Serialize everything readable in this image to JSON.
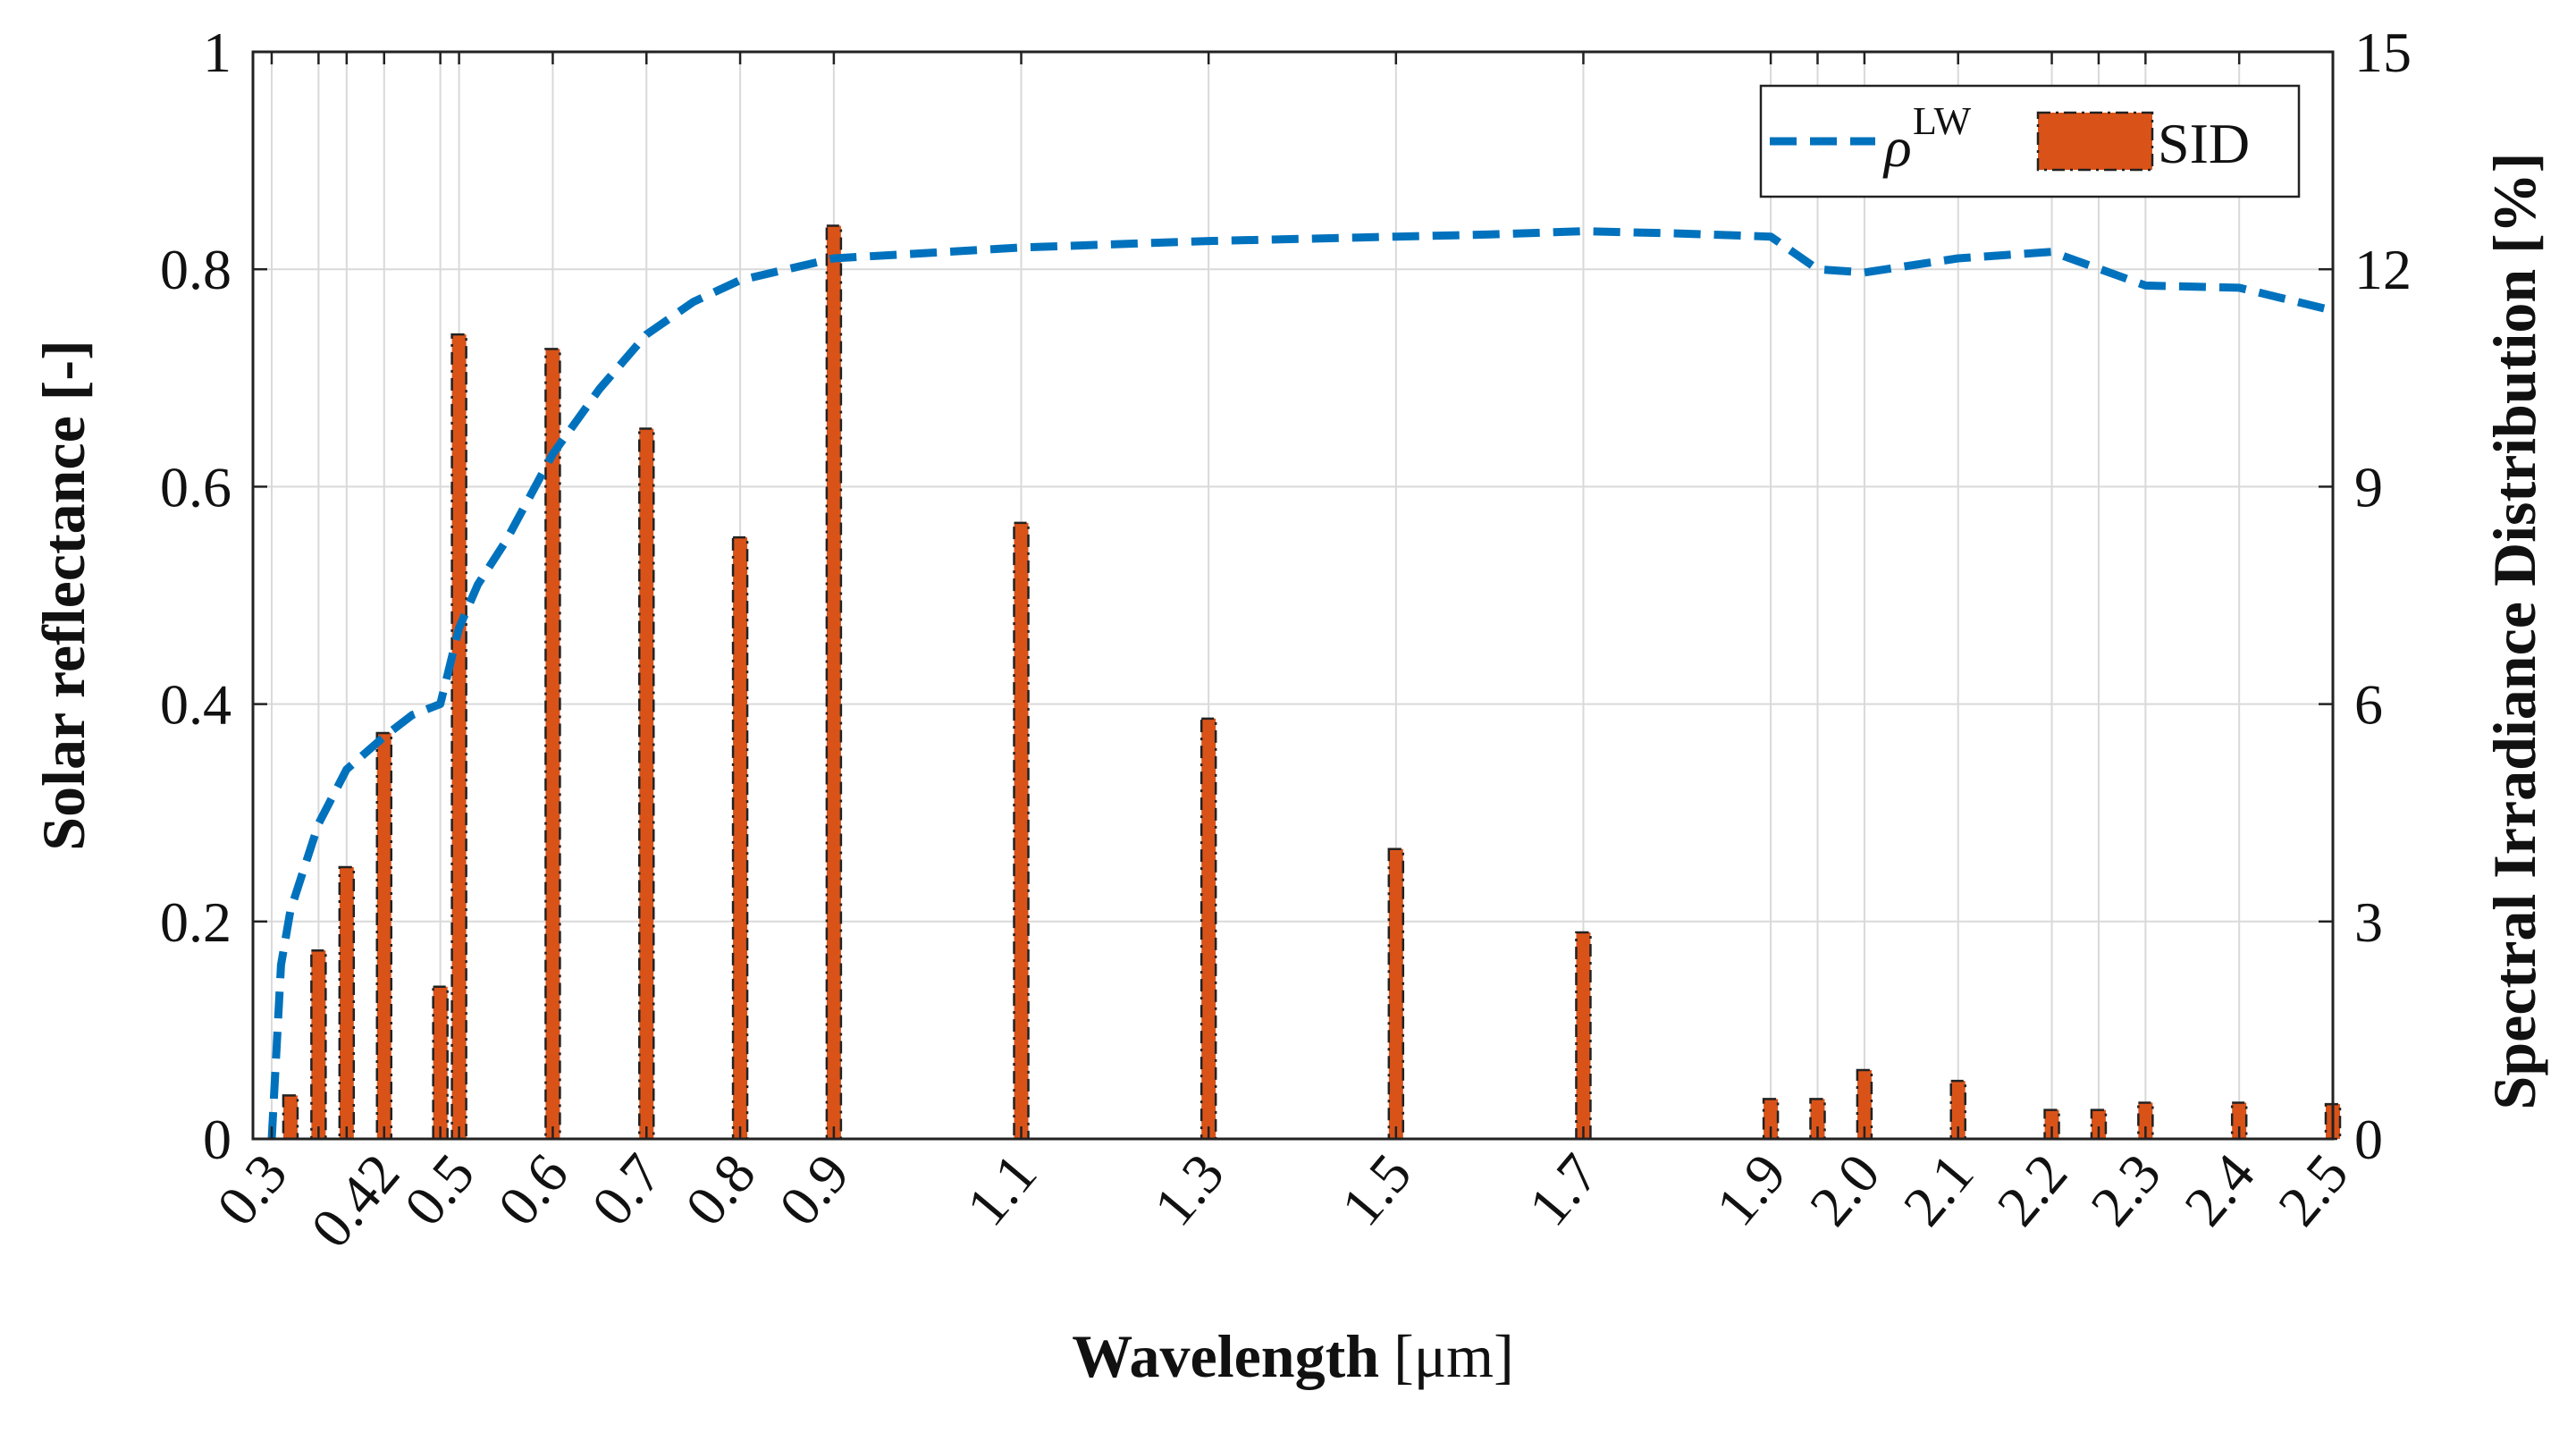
{
  "chart_data": {
    "type": "bar+line",
    "xlabel_bold": "Wavelength",
    "xlabel_unit": "[μm]",
    "ylabel_left": "Solar reflectance [-]",
    "ylabel_right": "Spectral Irradiance Distribution [%]",
    "xlim": [
      0.28,
      2.5
    ],
    "ylim_left": [
      0,
      1
    ],
    "ylim_right": [
      0,
      15
    ],
    "grid": true,
    "legend_position": "top-right",
    "x_ticks": [
      0.3,
      0.35,
      0.38,
      0.42,
      0.48,
      0.5,
      0.6,
      0.7,
      0.8,
      0.9,
      1.1,
      1.3,
      1.5,
      1.7,
      1.9,
      1.95,
      2.0,
      2.1,
      2.2,
      2.25,
      2.3,
      2.4,
      2.5
    ],
    "x_tick_labels": [
      {
        "value": 0.3,
        "label": "0.3"
      },
      {
        "value": 0.42,
        "label": "0.42"
      },
      {
        "value": 0.5,
        "label": "0.5"
      },
      {
        "value": 0.6,
        "label": "0.6"
      },
      {
        "value": 0.7,
        "label": "0.7"
      },
      {
        "value": 0.8,
        "label": "0.8"
      },
      {
        "value": 0.9,
        "label": "0.9"
      },
      {
        "value": 1.1,
        "label": "1.1"
      },
      {
        "value": 1.3,
        "label": "1.3"
      },
      {
        "value": 1.5,
        "label": "1.5"
      },
      {
        "value": 1.7,
        "label": "1.7"
      },
      {
        "value": 1.9,
        "label": "1.9"
      },
      {
        "value": 2.0,
        "label": "2.0"
      },
      {
        "value": 2.1,
        "label": "2.1"
      },
      {
        "value": 2.2,
        "label": "2.2"
      },
      {
        "value": 2.3,
        "label": "2.3"
      },
      {
        "value": 2.4,
        "label": "2.4"
      },
      {
        "value": 2.5,
        "label": "2.5"
      }
    ],
    "y_ticks_left": [
      {
        "value": 0,
        "label": "0"
      },
      {
        "value": 0.2,
        "label": "0.2"
      },
      {
        "value": 0.4,
        "label": "0.4"
      },
      {
        "value": 0.6,
        "label": "0.6"
      },
      {
        "value": 0.8,
        "label": "0.8"
      },
      {
        "value": 1,
        "label": "1"
      }
    ],
    "y_ticks_right": [
      {
        "value": 0,
        "label": "0"
      },
      {
        "value": 3,
        "label": "3"
      },
      {
        "value": 6,
        "label": "6"
      },
      {
        "value": 9,
        "label": "9"
      },
      {
        "value": 12,
        "label": "12"
      },
      {
        "value": 15,
        "label": "15"
      }
    ],
    "series": [
      {
        "name": "ρ^LW",
        "legend_label": "ρ",
        "legend_superscript": "LW",
        "kind": "line",
        "axis": "left",
        "style": "dashed",
        "color": "#0072BD",
        "x": [
          0.3,
          0.31,
          0.32,
          0.35,
          0.38,
          0.42,
          0.45,
          0.48,
          0.5,
          0.52,
          0.55,
          0.6,
          0.65,
          0.7,
          0.75,
          0.8,
          0.85,
          0.9,
          1.0,
          1.1,
          1.2,
          1.3,
          1.4,
          1.5,
          1.6,
          1.7,
          1.8,
          1.9,
          1.95,
          2.0,
          2.1,
          2.2,
          2.3,
          2.4,
          2.5
        ],
        "values": [
          0.0,
          0.16,
          0.21,
          0.29,
          0.34,
          0.37,
          0.39,
          0.4,
          0.47,
          0.51,
          0.55,
          0.63,
          0.69,
          0.74,
          0.77,
          0.79,
          0.8,
          0.81,
          0.815,
          0.82,
          0.823,
          0.826,
          0.828,
          0.83,
          0.832,
          0.835,
          0.833,
          0.83,
          0.8,
          0.797,
          0.81,
          0.816,
          0.785,
          0.783,
          0.762
        ]
      },
      {
        "name": "SID",
        "kind": "bar",
        "axis": "right",
        "color": "#D95319",
        "x": [
          0.32,
          0.35,
          0.38,
          0.42,
          0.48,
          0.5,
          0.6,
          0.7,
          0.8,
          0.9,
          1.1,
          1.3,
          1.5,
          1.7,
          1.9,
          1.95,
          2.0,
          2.1,
          2.2,
          2.25,
          2.3,
          2.4,
          2.5
        ],
        "values": [
          0.6,
          2.6,
          3.75,
          5.6,
          2.1,
          11.1,
          10.9,
          9.8,
          8.3,
          12.6,
          8.5,
          5.8,
          4.0,
          2.85,
          0.55,
          0.55,
          0.95,
          0.8,
          0.4,
          0.4,
          0.5,
          0.5,
          0.48
        ]
      }
    ]
  }
}
